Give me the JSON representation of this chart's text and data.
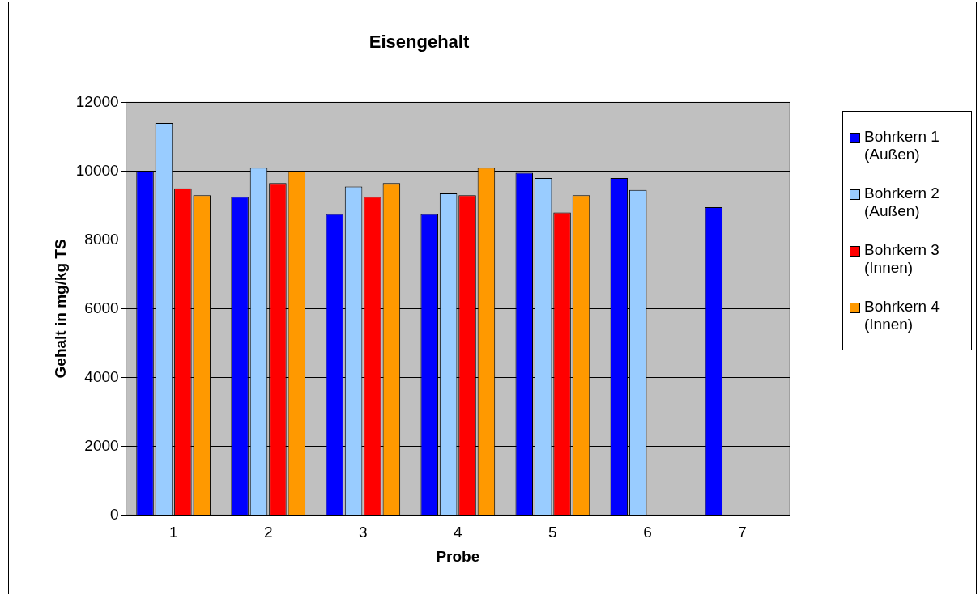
{
  "chart_data": {
    "type": "bar",
    "title": "Eisengehalt",
    "xlabel": "Probe",
    "ylabel": "Gehalt in mg/kg TS",
    "categories": [
      "1",
      "2",
      "3",
      "4",
      "5",
      "6",
      "7"
    ],
    "series": [
      {
        "name": "Bohrkern 1 (Außen)",
        "color": "#0000ff",
        "values": [
          10000,
          9250,
          8750,
          8750,
          9950,
          9800,
          8950
        ]
      },
      {
        "name": "Bohrkern 2 (Außen)",
        "color": "#99ccff",
        "values": [
          11400,
          10100,
          9550,
          9350,
          9800,
          9450,
          null
        ]
      },
      {
        "name": "Bohrkern 3 (Innen)",
        "color": "#ff0000",
        "values": [
          9500,
          9650,
          9250,
          9300,
          8800,
          null,
          null
        ]
      },
      {
        "name": "Bohrkern 4 (Innen)",
        "color": "#ff9900",
        "values": [
          9300,
          10000,
          9650,
          10100,
          9300,
          null,
          null
        ]
      }
    ],
    "ylim": [
      0,
      12000
    ],
    "yticks": [
      0,
      2000,
      4000,
      6000,
      8000,
      10000,
      12000
    ],
    "grid": "y",
    "legend": "right"
  }
}
